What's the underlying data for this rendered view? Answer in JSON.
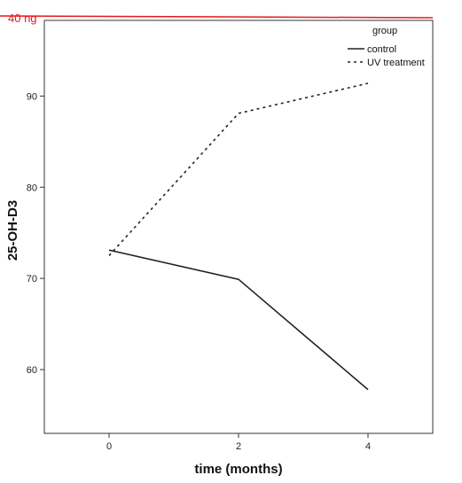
{
  "chart_data": {
    "type": "line",
    "title": "",
    "xlabel": "time (months)",
    "ylabel": "25-OH-D3",
    "x": [
      0,
      2,
      4
    ],
    "xticks": [
      "0",
      "2",
      "4"
    ],
    "xlim": [
      -1,
      5
    ],
    "yticks": [
      "60",
      "70",
      "80",
      "90"
    ],
    "ylim": [
      53,
      98.3
    ],
    "grid": false,
    "legend": {
      "title": "group",
      "position": "top-right"
    },
    "series": [
      {
        "name": "control",
        "style": "solid",
        "color": "#222222",
        "values": [
          73.1,
          69.9,
          57.8
        ]
      },
      {
        "name": "UV treatment",
        "style": "dotted",
        "color": "#222222",
        "values": [
          72.5,
          88.1,
          91.4
        ]
      }
    ],
    "annotations": [
      {
        "text": "40 ng",
        "type": "reference-line",
        "color": "#e31a1c"
      }
    ]
  }
}
